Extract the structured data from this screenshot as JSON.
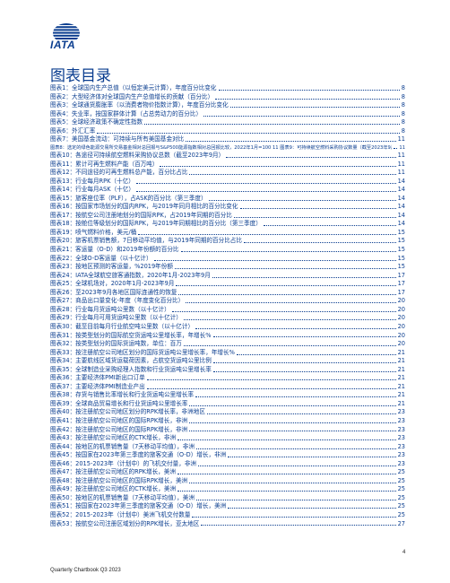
{
  "brand": {
    "logo_text": "IATA"
  },
  "title": "图表目录",
  "entries": [
    {
      "label": "图表1：全球国内生产总值（以恒定美元计算），年度百分比变化",
      "page": "8"
    },
    {
      "label": "图表2：大型经济体对全球国内生产总值增长的贡献（百分比）",
      "page": "8"
    },
    {
      "label": "图表3：全球通货膨胀率（以消费者物价指数计算），年度百分比变化",
      "page": "8"
    },
    {
      "label": "图表4：失业率，按国家群体计算（占总劳动力的百分比）",
      "page": "8"
    },
    {
      "label": "图表5：全球经济政策不确定性指数",
      "page": "8"
    },
    {
      "label": "图表6：外汇汇率",
      "page": "8"
    },
    {
      "label": "图表7：美国基金流动：可持续与所有美国基金对比",
      "page": "11"
    },
    {
      "label": "图表8：选定的绿色能源交易所交易基金相对总回报与S&P500能源指数相对总回报比较，2022年1月=100 11 图表9：可持续航空燃料采购协议数量（截至2023年9月）",
      "page": "11",
      "small": true
    },
    {
      "label": "图表10：各途径可持续航空燃料采购协议总数（截至2023年9月）",
      "page": "11"
    },
    {
      "label": "图表11：累计可再生燃料产能（百万吨）",
      "page": "11"
    },
    {
      "label": "图表12：不同途径的可再生燃料总产能，百分比占比",
      "page": "11"
    },
    {
      "label": "图表13：行业每月RPK（十亿）",
      "page": "14"
    },
    {
      "label": "图表14：行业每月ASK（十亿）",
      "page": "14"
    },
    {
      "label": "图表15：旅客座位率（PLF），占ASK的百分比（第三季度）",
      "page": "14"
    },
    {
      "label": "图表16：按国家市场划分的国内RPK，与2019年同月相比的百分比变化",
      "page": "14"
    },
    {
      "label": "图表17：按航空公司注册地划分的国际RPK，占2019年同期的百分比",
      "page": "14"
    },
    {
      "label": "图表18：按舱位等级划分的国际RPK，与2019年同期相比的百分比（第三季度）",
      "page": "14"
    },
    {
      "label": "图表19：喷气燃料价格，美元/桶",
      "page": "15"
    },
    {
      "label": "图表20：旅客机票销售额，7日移动平均值，与2019年同期的百分比占比",
      "page": "15"
    },
    {
      "label": "图表21：客运量（O-D）和2019年份额的百分比",
      "page": "15"
    },
    {
      "label": "图表22：全球O-D客运量（以十亿计）",
      "page": "15"
    },
    {
      "label": "图表23：按地区预测的客运量，%2019年份额",
      "page": "15"
    },
    {
      "label": "图表24：IATA全球航空旅客通指数，2020年1月-2023年9月",
      "page": "17"
    },
    {
      "label": "图表25：全球机场对，2020年1月-2023年9月",
      "page": "17"
    },
    {
      "label": "图表26：至2023年9月各地区国际连通性的恢复",
      "page": "17"
    },
    {
      "label": "图表27：商品出口量变化-年度（年度变化百分比）",
      "page": "20"
    },
    {
      "label": "图表28：行业每月货运吨公里数（以十亿计）",
      "page": "20"
    },
    {
      "label": "图表29：行业每月可用货运吨公里数（以十亿计）",
      "page": "20"
    },
    {
      "label": "图表30：截至目前每月行业航空吨公里数（以十亿计）",
      "page": "20"
    },
    {
      "label": "图表31：按类型划分的国际航空货运吨公里增长率，年增长%",
      "page": "20"
    },
    {
      "label": "图表32：按类型划分的国际货运吨数，单位：百万",
      "page": "20"
    },
    {
      "label": "图表33：按注册航空公司地区划分的国际货运吨公里增长率，年增长%",
      "page": "21"
    },
    {
      "label": "图表34：主要航线区域货运载荷因素，占航空货运吨公里比例",
      "page": "21"
    },
    {
      "label": "图表35：全球制造业采购经理人指数和行业货运吨公里增长率",
      "page": "21"
    },
    {
      "label": "图表36：主要经济体PMI新出口订单",
      "page": "21"
    },
    {
      "label": "图表37：主要经济体PMI制造业产出",
      "page": "21"
    },
    {
      "label": "图表38：存货与销售比率增长和行业货运吨公里增长率",
      "page": "21"
    },
    {
      "label": "图表39：全球商品贸易增长和行业货运吨公里增长率",
      "page": "21"
    },
    {
      "label": "图表40：按注册航空公司地区划分的RPK增长率，非洲地区",
      "page": "23"
    },
    {
      "label": "图表41：按注册航空公司地区的国际RPK增长，非洲",
      "page": "23"
    },
    {
      "label": "图表42：按注册航空公司地区的国际RPK增长，非洲",
      "page": "23"
    },
    {
      "label": "图表43：按注册航空公司地区的CTK增长，非洲",
      "page": "23"
    },
    {
      "label": "图表44：按地区的机票销售量（7天移动平均值），非洲",
      "page": "23"
    },
    {
      "label": "图表45：按国家在2023年第三季度的旅客交通（O-D）增长，非洲",
      "page": "23"
    },
    {
      "label": "图表46：2015-2023年（计划中）的飞机交付量，非洲",
      "page": "23"
    },
    {
      "label": "图表47：按注册航空公司地区的RPK增长，美洲",
      "page": "25"
    },
    {
      "label": "图表48：按注册航空公司地区的国际RPK增长，美洲",
      "page": "25"
    },
    {
      "label": "图表49：按注册航空公司地区的CTK增长，美洲",
      "page": "25"
    },
    {
      "label": "图表50：按地区的机票销售量（7天移动平均值），美洲",
      "page": "25"
    },
    {
      "label": "图表51：按国家在2023年第三季度的旅客交通（O-D）增长，美洲",
      "page": "25"
    },
    {
      "label": "图表52：2015-2023年（计划中）美洲飞机交付数量",
      "page": "25"
    },
    {
      "label": "图表53：按航空公司注册区域划分的RPK增长，亚太地区",
      "page": "27"
    }
  ],
  "footer": {
    "left": "Quarterly Chartbook Q3 2023",
    "page_number": "4"
  },
  "colors": {
    "accent": "#0a3d8f"
  }
}
